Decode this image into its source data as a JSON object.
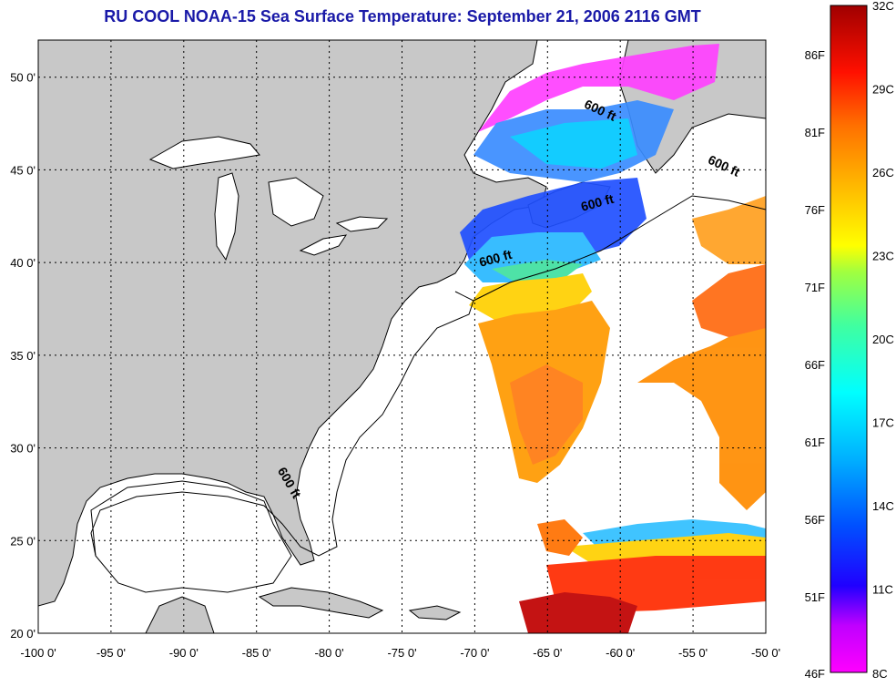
{
  "title": "RU COOL  NOAA-15  Sea Surface Temperature:  September 21, 2006 2116 GMT",
  "map": {
    "lon_range": [
      -100,
      -50
    ],
    "lat_range": [
      20,
      52
    ],
    "x_ticks": [
      "-100 0'",
      "-95 0'",
      "-90 0'",
      "-85 0'",
      "-80 0'",
      "-75 0'",
      "-70 0'",
      "-65 0'",
      "-60 0'",
      "-55 0'",
      "-50 0'"
    ],
    "y_ticks": [
      "50 0'",
      "45 0'",
      "40 0'",
      "35 0'",
      "30 0'",
      "25 0'",
      "20 0'"
    ],
    "contour_labels": [
      {
        "text": "600 ft",
        "lon": -61.5,
        "lat": 48.0
      },
      {
        "text": "600 ft",
        "lon": -53.0,
        "lat": 45.0
      },
      {
        "text": "600 ft",
        "lon": -61.5,
        "lat": 43.0
      },
      {
        "text": "600 ft",
        "lon": -68.5,
        "lat": 40.0
      },
      {
        "text": "600 ft",
        "lon": -83.0,
        "lat": 28.0
      }
    ],
    "land_color": "#c8c8c8",
    "water_color": "#ffffff"
  },
  "colorbar": {
    "f_labels": [
      "86F",
      "81F",
      "76F",
      "71F",
      "66F",
      "61F",
      "56F",
      "51F",
      "46F"
    ],
    "c_labels": [
      "32C",
      "29C",
      "26C",
      "23C",
      "20C",
      "17C",
      "14C",
      "11C",
      "8C"
    ],
    "range_c": [
      8,
      32
    ]
  }
}
